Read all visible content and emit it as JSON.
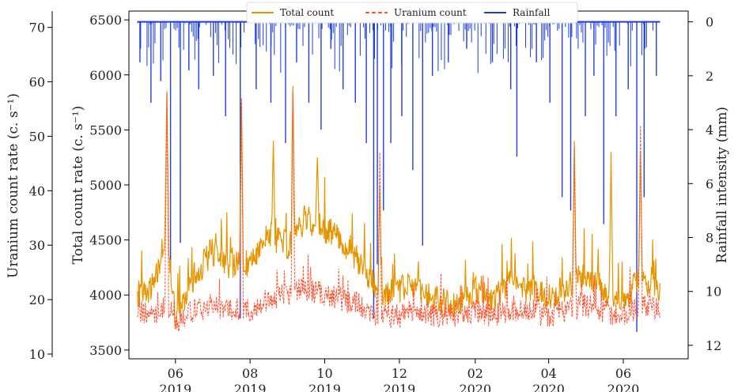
{
  "chart_data": {
    "type": "line",
    "title": "",
    "legend_position": "top-center",
    "grid": false,
    "xaxis": {
      "ticks": [
        {
          "date": "2019-06-01",
          "month": "06",
          "year": "2019"
        },
        {
          "date": "2019-08-01",
          "month": "08",
          "year": "2019"
        },
        {
          "date": "2019-10-01",
          "month": "10",
          "year": "2019"
        },
        {
          "date": "2019-12-01",
          "month": "12",
          "year": "2019"
        },
        {
          "date": "2020-02-01",
          "month": "02",
          "year": "2020"
        },
        {
          "date": "2020-04-01",
          "month": "04",
          "year": "2020"
        },
        {
          "date": "2020-06-01",
          "month": "06",
          "year": "2020"
        }
      ],
      "xlim": [
        "2019-04-24",
        "2020-07-24"
      ]
    },
    "y_uranium": {
      "label": "Uranium count rate (c. s⁻¹)",
      "ticks": [
        10,
        20,
        30,
        40,
        50,
        60,
        70
      ],
      "ylim": [
        10,
        73
      ]
    },
    "y_total": {
      "label": "Total count rate (c. s⁻¹)",
      "ticks": [
        3500,
        4000,
        4500,
        5000,
        5500,
        6000,
        6500
      ],
      "ylim": [
        3420,
        6580
      ]
    },
    "y_rain": {
      "label": "Rainfall intensity (mm)",
      "ticks": [
        0,
        2,
        4,
        6,
        8,
        10,
        12
      ],
      "ylim": [
        -0.4,
        12.5
      ],
      "inverted": true
    },
    "colors": {
      "total": "#e69500",
      "uranium": "#ff4f2f",
      "rain": "#1f3fe0"
    },
    "series": [
      {
        "name": "Total count",
        "style": "solid",
        "x": [
          "2019-05-01",
          "2019-05-15",
          "2019-05-25",
          "2019-06-01",
          "2019-06-15",
          "2019-07-01",
          "2019-07-15",
          "2019-08-01",
          "2019-08-15",
          "2019-09-01",
          "2019-09-15",
          "2019-10-01",
          "2019-10-15",
          "2019-11-01",
          "2019-11-15",
          "2019-12-01",
          "2019-12-15",
          "2020-01-01",
          "2020-01-15",
          "2020-02-01",
          "2020-02-15",
          "2020-03-01",
          "2020-03-15",
          "2020-04-01",
          "2020-04-15",
          "2020-05-01",
          "2020-05-15",
          "2020-06-01",
          "2020-06-15",
          "2020-07-01"
        ],
        "y": [
          3950,
          4100,
          4600,
          3800,
          4150,
          4400,
          4250,
          4300,
          4550,
          4450,
          4700,
          4600,
          4500,
          4250,
          4000,
          4050,
          4100,
          3950,
          3900,
          4050,
          3950,
          4150,
          4050,
          4000,
          4050,
          4200,
          4050,
          3950,
          4150,
          4000
        ],
        "peaks": [
          {
            "x": "2019-05-25",
            "y": 5850
          },
          {
            "x": "2019-07-25",
            "y": 5750
          },
          {
            "x": "2019-08-20",
            "y": 5400
          },
          {
            "x": "2019-09-05",
            "y": 5900
          },
          {
            "x": "2019-09-25",
            "y": 5250
          },
          {
            "x": "2019-11-15",
            "y": 5000
          },
          {
            "x": "2020-04-22",
            "y": 5400
          },
          {
            "x": "2020-05-22",
            "y": 5300
          },
          {
            "x": "2020-06-15",
            "y": 5300
          }
        ]
      },
      {
        "name": "Uranium count",
        "style": "dashed",
        "x": [
          "2019-05-01",
          "2019-05-15",
          "2019-05-25",
          "2019-06-01",
          "2019-06-15",
          "2019-07-01",
          "2019-07-15",
          "2019-08-01",
          "2019-08-15",
          "2019-09-01",
          "2019-09-15",
          "2019-10-01",
          "2019-10-15",
          "2019-11-01",
          "2019-11-15",
          "2019-12-01",
          "2019-12-15",
          "2020-01-01",
          "2020-01-15",
          "2020-02-01",
          "2020-02-15",
          "2020-03-01",
          "2020-03-15",
          "2020-04-01",
          "2020-04-15",
          "2020-05-01",
          "2020-05-15",
          "2020-06-01",
          "2020-06-15",
          "2020-07-01"
        ],
        "y": [
          18,
          17,
          19,
          16,
          18,
          19,
          18,
          18,
          20,
          21,
          22,
          21,
          20,
          19,
          17,
          17,
          18,
          17,
          17,
          18,
          17,
          18,
          18,
          17,
          18,
          19,
          18,
          17,
          19,
          18
        ],
        "peaks": [
          {
            "x": "2019-05-25",
            "y": 58
          },
          {
            "x": "2019-07-25",
            "y": 57
          },
          {
            "x": "2019-09-05",
            "y": 58
          },
          {
            "x": "2019-11-15",
            "y": 47
          },
          {
            "x": "2020-04-22",
            "y": 48
          },
          {
            "x": "2020-06-15",
            "y": 52
          }
        ]
      },
      {
        "name": "Rainfall",
        "style": "bars",
        "events": [
          {
            "x": "2019-05-03",
            "y": 1.5
          },
          {
            "x": "2019-05-12",
            "y": 3.0
          },
          {
            "x": "2019-05-20",
            "y": 2.2
          },
          {
            "x": "2019-05-28",
            "y": 9.2
          },
          {
            "x": "2019-06-05",
            "y": 8.2
          },
          {
            "x": "2019-06-12",
            "y": 1.8
          },
          {
            "x": "2019-06-20",
            "y": 2.5
          },
          {
            "x": "2019-07-02",
            "y": 2.0
          },
          {
            "x": "2019-07-12",
            "y": 3.5
          },
          {
            "x": "2019-07-24",
            "y": 11.0
          },
          {
            "x": "2019-08-06",
            "y": 2.5
          },
          {
            "x": "2019-08-18",
            "y": 3.0
          },
          {
            "x": "2019-08-30",
            "y": 4.5
          },
          {
            "x": "2019-09-08",
            "y": 1.5
          },
          {
            "x": "2019-09-18",
            "y": 3.0
          },
          {
            "x": "2019-09-28",
            "y": 4.0
          },
          {
            "x": "2019-10-06",
            "y": 1.0
          },
          {
            "x": "2019-10-16",
            "y": 2.5
          },
          {
            "x": "2019-10-26",
            "y": 3.0
          },
          {
            "x": "2019-11-04",
            "y": 4.5
          },
          {
            "x": "2019-11-10",
            "y": 11.0
          },
          {
            "x": "2019-11-13",
            "y": 9.0
          },
          {
            "x": "2019-11-18",
            "y": 7.0
          },
          {
            "x": "2019-11-24",
            "y": 4.5
          },
          {
            "x": "2019-12-03",
            "y": 3.5
          },
          {
            "x": "2019-12-12",
            "y": 5.5
          },
          {
            "x": "2019-12-20",
            "y": 8.3
          },
          {
            "x": "2019-12-28",
            "y": 2.0
          },
          {
            "x": "2020-01-10",
            "y": 1.5
          },
          {
            "x": "2020-01-25",
            "y": 1.0
          },
          {
            "x": "2020-02-15",
            "y": 1.5
          },
          {
            "x": "2020-03-01",
            "y": 2.5
          },
          {
            "x": "2020-03-06",
            "y": 5.0
          },
          {
            "x": "2020-03-22",
            "y": 1.5
          },
          {
            "x": "2020-04-02",
            "y": 3.0
          },
          {
            "x": "2020-04-12",
            "y": 6.5
          },
          {
            "x": "2020-04-19",
            "y": 7.0
          },
          {
            "x": "2020-05-01",
            "y": 3.5
          },
          {
            "x": "2020-05-08",
            "y": 2.0
          },
          {
            "x": "2020-05-16",
            "y": 7.5
          },
          {
            "x": "2020-05-26",
            "y": 3.5
          },
          {
            "x": "2020-06-05",
            "y": 2.5
          },
          {
            "x": "2020-06-12",
            "y": 11.5
          },
          {
            "x": "2020-06-18",
            "y": 6.5
          },
          {
            "x": "2020-06-28",
            "y": 2.0
          }
        ]
      }
    ]
  }
}
